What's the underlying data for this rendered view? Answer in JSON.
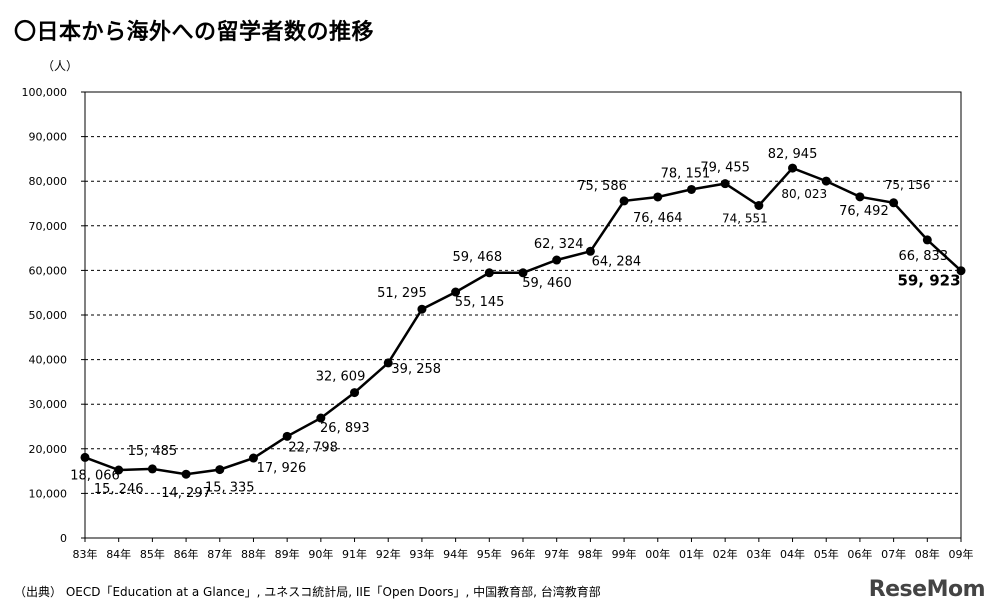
{
  "title": "〇日本から海外への留学者数の推移",
  "source": "（出典） OECD「Education at a Glance」, ユネスコ統計局, IIE「Open Doors」, 中国教育部, 台湾教育部",
  "logo": "ReseMom",
  "chart_data": {
    "type": "line",
    "ylabel": "（人）",
    "ylim": [
      0,
      100000
    ],
    "yticks": [
      0,
      10000,
      20000,
      30000,
      40000,
      50000,
      60000,
      70000,
      80000,
      90000,
      100000
    ],
    "ytick_labels": [
      "0",
      "10,000",
      "20,000",
      "30,000",
      "40,000",
      "50,000",
      "60,000",
      "70,000",
      "80,000",
      "90,000",
      "100,000"
    ],
    "categories": [
      "83年",
      "84年",
      "85年",
      "86年",
      "87年",
      "88年",
      "89年",
      "90年",
      "91年",
      "92年",
      "93年",
      "94年",
      "95年",
      "96年",
      "97年",
      "98年",
      "99年",
      "00年",
      "01年",
      "02年",
      "03年",
      "04年",
      "05年",
      "06年",
      "07年",
      "08年",
      "09年"
    ],
    "series": [
      {
        "values": [
          18066,
          15246,
          15485,
          14297,
          15335,
          17926,
          22798,
          26893,
          32609,
          39258,
          51295,
          55145,
          59468,
          59460,
          62324,
          64284,
          75586,
          76464,
          78151,
          79455,
          74551,
          82945,
          80023,
          76492,
          75156,
          66833,
          59923
        ],
        "labels": [
          "18, 066",
          "15, 246",
          "15, 485",
          "14, 297",
          "15, 335",
          "17, 926",
          "22, 798",
          "26, 893",
          "32, 609",
          "39, 258",
          "51, 295",
          "55, 145",
          "59, 468",
          "59, 460",
          "62, 324",
          "64, 284",
          "75, 586",
          "76, 464",
          "78, 151",
          "79, 455",
          "74, 551",
          "82, 945",
          "80, 023",
          "76, 492",
          "75, 156",
          "66, 833",
          "59, 923"
        ]
      }
    ],
    "color": "#000000",
    "grid": "horizontal"
  }
}
